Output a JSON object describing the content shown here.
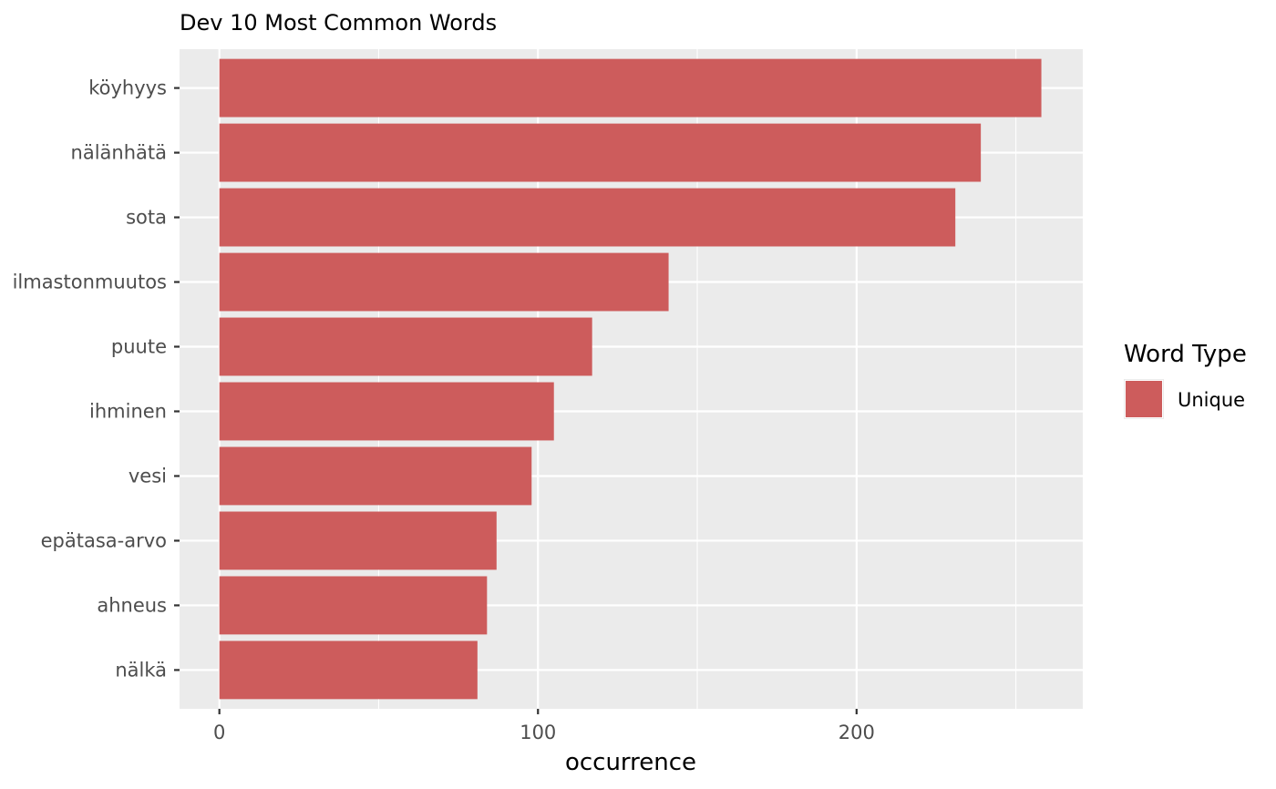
{
  "chart_data": {
    "type": "bar",
    "orientation": "horizontal",
    "title": "Dev 10 Most Common Words",
    "xlabel": "occurrence",
    "ylabel": "",
    "xlim": [
      -12.5,
      271
    ],
    "x_ticks": [
      0,
      100,
      200
    ],
    "categories": [
      "köyhyys",
      "nälänhätä",
      "sota",
      "ilmastonmuutos",
      "puute",
      "ihminen",
      "vesi",
      "epätasa-arvo",
      "ahneus",
      "nälkä"
    ],
    "series": [
      {
        "name": "Unique",
        "color": "#cd5c5c",
        "values": [
          258,
          239,
          231,
          141,
          117,
          105,
          98,
          87,
          84,
          81
        ]
      }
    ],
    "grid": true,
    "legend": {
      "title": "Word Type",
      "position": "right",
      "entries": [
        "Unique"
      ]
    },
    "colors": {
      "panel_background": "#ebebeb",
      "grid_line": "#ffffff",
      "bar_fill": "#cd5c5c"
    }
  }
}
